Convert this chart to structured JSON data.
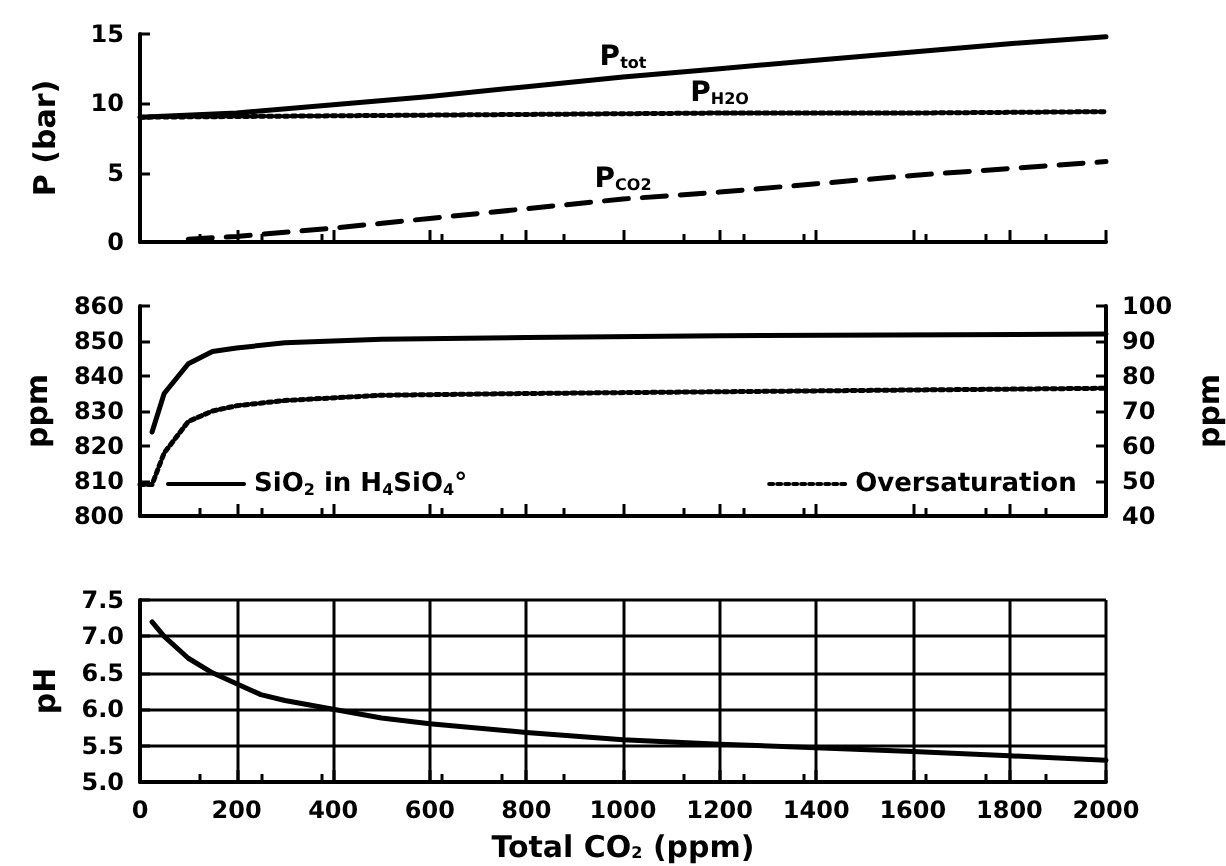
{
  "chart_data": [
    {
      "type": "line",
      "ylabel": "P (bar)",
      "xlim": [
        0,
        2000
      ],
      "xticks": [
        0,
        200,
        400,
        600,
        800,
        1000,
        1200,
        1400,
        1600,
        1800,
        2000
      ],
      "ylim": [
        0,
        15
      ],
      "yticks": [
        0,
        5,
        10,
        15
      ],
      "tick_labels": "y",
      "legend": false,
      "series": [
        {
          "name": "P$_{tot}$",
          "color": "#000000",
          "line_style": "solid",
          "x": [
            0,
            200,
            400,
            600,
            800,
            1000,
            1200,
            1400,
            1600,
            1800,
            2000
          ],
          "values": [
            9,
            9.3,
            9.9,
            10.5,
            11.2,
            11.9,
            12.5,
            13.1,
            13.7,
            14.3,
            14.8
          ]
        },
        {
          "name": "P$_{H2O}$",
          "color": "#000000",
          "line_style": "dotted",
          "x": [
            0,
            400,
            800,
            1200,
            1600,
            2000
          ],
          "values": [
            9,
            9.1,
            9.2,
            9.3,
            9.3,
            9.4
          ]
        },
        {
          "name": "P$_{CO2}$",
          "color": "#000000",
          "line_style": "dashed",
          "x": [
            100,
            200,
            400,
            600,
            800,
            1000,
            1200,
            1400,
            1600,
            1800,
            2000
          ],
          "values": [
            0.2,
            0.4,
            1,
            1.7,
            2.4,
            3.1,
            3.6,
            4.2,
            4.8,
            5.3,
            5.8
          ]
        }
      ]
    },
    {
      "type": "line",
      "ylabel": "ppm",
      "y2label": "ppm",
      "xlim": [
        0,
        2000
      ],
      "xticks": [
        0,
        200,
        400,
        600,
        800,
        1000,
        1200,
        1400,
        1600,
        1800,
        2000
      ],
      "ylim": [
        800,
        860
      ],
      "yticks": [
        800,
        810,
        820,
        830,
        840,
        850,
        860
      ],
      "y2lim": [
        40,
        100
      ],
      "y2ticks": [
        40,
        50,
        60,
        70,
        80,
        90,
        100
      ],
      "tick_labels": "y",
      "legend": "bottom",
      "series": [
        {
          "name": "SiO$_{2}$ in H$_{4}$SiO$_{4}$°",
          "color": "#000000",
          "line_style": "solid",
          "x": [
            25,
            50,
            100,
            150,
            200,
            300,
            500,
            800,
            1200,
            2000
          ],
          "values": [
            824,
            835,
            843.5,
            847,
            848,
            849.5,
            850.5,
            851,
            851.5,
            852
          ]
        },
        {
          "name": "Oversaturation",
          "color": "#000000",
          "line_style": "dotted",
          "axis": "y2",
          "x": [
            0,
            25,
            50,
            100,
            150,
            200,
            300,
            500,
            800,
            1200,
            2000
          ],
          "values": [
            49,
            49,
            58,
            67,
            70,
            71.5,
            73,
            74.5,
            75,
            75.5,
            76.5
          ]
        }
      ]
    },
    {
      "type": "line",
      "xlabel": "Total CO$_{2}$ (ppm)",
      "ylabel": "pH",
      "xlim": [
        0,
        2000
      ],
      "xticks": [
        0,
        200,
        400,
        600,
        800,
        1000,
        1200,
        1400,
        1600,
        1800,
        2000
      ],
      "ylim": [
        5,
        7.5
      ],
      "yticks": [
        {
          "value": 5,
          "label": "5.0"
        },
        5.5,
        {
          "value": 6,
          "label": "6.0"
        },
        6.5,
        {
          "value": 7,
          "label": "7.0"
        },
        7.5
      ],
      "grid": true,
      "legend": false,
      "series": [
        {
          "color": "#000000",
          "line_style": "solid",
          "x": [
            25,
            50,
            100,
            150,
            200,
            250,
            300,
            400,
            500,
            600,
            800,
            1000,
            1200,
            1400,
            1600,
            1800,
            2000
          ],
          "values": [
            7.2,
            7.0,
            6.7,
            6.5,
            6.35,
            6.2,
            6.12,
            6.0,
            5.88,
            5.8,
            5.68,
            5.58,
            5.52,
            5.47,
            5.42,
            5.36,
            5.3
          ]
        }
      ]
    }
  ]
}
